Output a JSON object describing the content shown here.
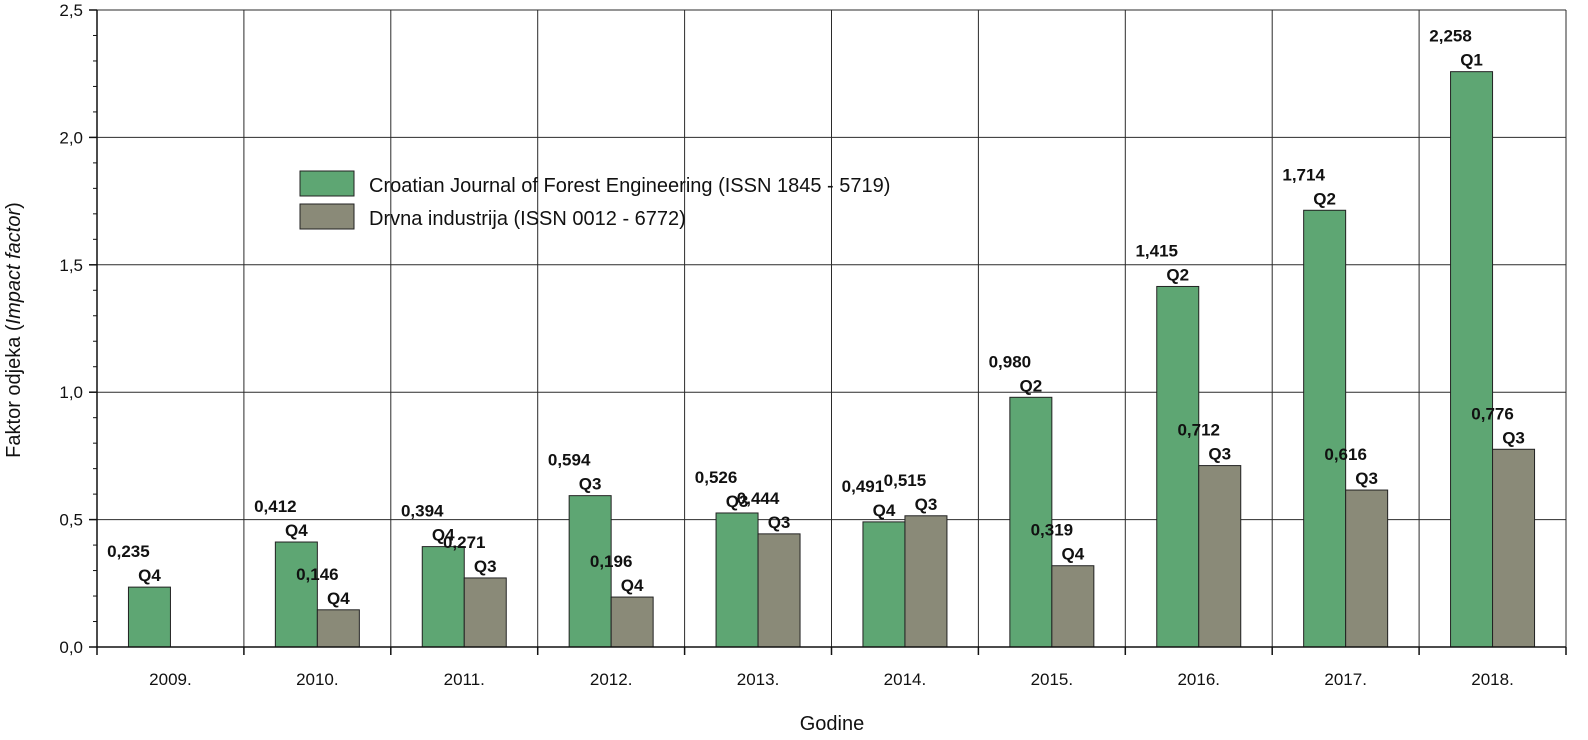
{
  "colors": {
    "series1": "#5ea673",
    "series2": "#8a8a78",
    "grid": "#2b2b2b",
    "axis": "#111111"
  },
  "chart_data": {
    "type": "bar",
    "categories": [
      "2009.",
      "2010.",
      "2011.",
      "2012.",
      "2013.",
      "2014.",
      "2015.",
      "2016.",
      "2017.",
      "2018."
    ],
    "series": [
      {
        "name": "Croatian Journal of Forest Engineering (ISSN 1845 - 5719)",
        "values": [
          0.235,
          0.412,
          0.394,
          0.594,
          0.526,
          0.491,
          0.98,
          1.415,
          1.714,
          2.258
        ],
        "labels": [
          "0,235",
          "0,412",
          "0,394",
          "0,594",
          "0,526",
          "0,491",
          "0,980",
          "1,415",
          "1,714",
          "2,258"
        ],
        "quartiles": [
          "Q4",
          "Q4",
          "Q4",
          "Q3",
          "Q3",
          "Q4",
          "Q2",
          "Q2",
          "Q2",
          "Q1"
        ]
      },
      {
        "name": "Drvna industrija (ISSN 0012 - 6772)",
        "values": [
          null,
          0.146,
          0.271,
          0.196,
          0.444,
          0.515,
          0.319,
          0.712,
          0.616,
          0.776
        ],
        "labels": [
          null,
          "0,146",
          "0,271",
          "0,196",
          "0,444",
          "0,515",
          "0,319",
          "0,712",
          "0,616",
          "0,776"
        ],
        "quartiles": [
          null,
          "Q4",
          "Q3",
          "Q4",
          "Q3",
          "Q3",
          "Q4",
          "Q3",
          "Q3",
          "Q3"
        ]
      }
    ],
    "ylim": [
      0,
      2.5
    ],
    "yticks": [
      0,
      0.5,
      1.0,
      1.5,
      2.0,
      2.5
    ],
    "ytick_labels": [
      "0,0",
      "0,5",
      "1,0",
      "1,5",
      "2,0",
      "2,5"
    ],
    "xlabel": "Godine",
    "ylabel": "Faktor odjeka (Impact factor)",
    "ylabel_plain": "Faktor odjeka (",
    "ylabel_italic": "Impact factor",
    "ylabel_close": ")",
    "grid": true,
    "legend_position": "upper-left"
  }
}
